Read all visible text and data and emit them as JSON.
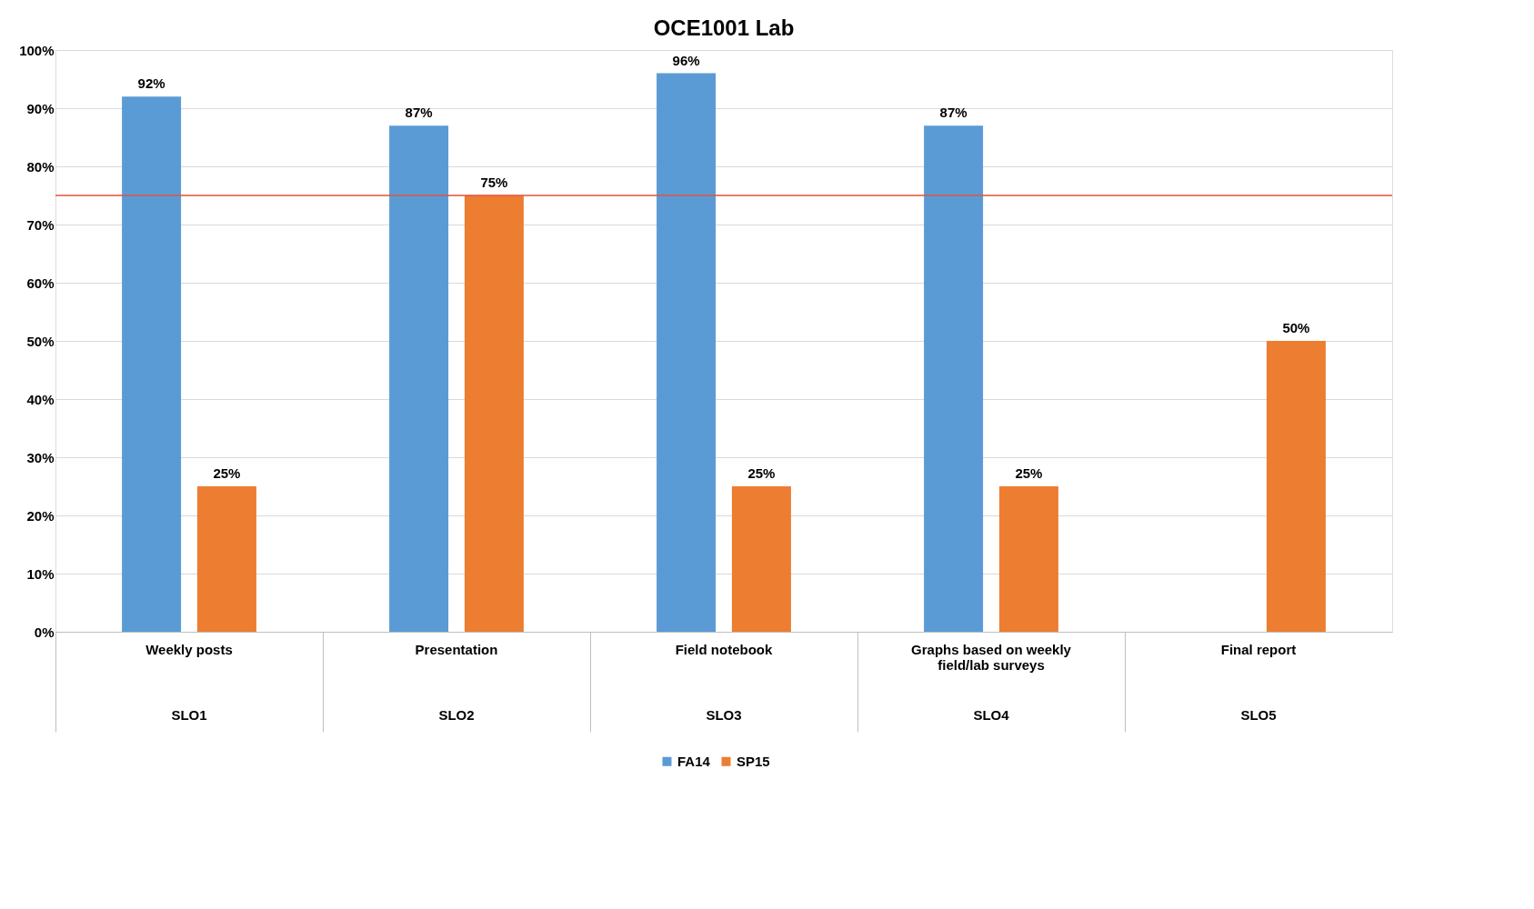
{
  "chart_data": {
    "type": "bar",
    "title": "OCE1001 Lab",
    "categories": [
      "Weekly posts",
      "Presentation",
      "Field notebook",
      "Graphs based on weekly field/lab surveys",
      "Final report"
    ],
    "series": [
      {
        "name": "FA14",
        "color": "#5b9bd5",
        "values": [
          92,
          87,
          96,
          87,
          null
        ],
        "value_labels": [
          "92%",
          "87%",
          "96%",
          "87%",
          null
        ]
      },
      {
        "name": "SP15",
        "color": "#ed7d31",
        "values": [
          25,
          75,
          25,
          25,
          50
        ],
        "value_labels": [
          "25%",
          "75%",
          "25%",
          "25%",
          "50%"
        ]
      }
    ],
    "ylim": [
      0,
      100
    ],
    "yticks": [
      {
        "value": 0,
        "label": "0%"
      },
      {
        "value": 10,
        "label": "10%"
      },
      {
        "value": 20,
        "label": "20%"
      },
      {
        "value": 30,
        "label": "30%"
      },
      {
        "value": 40,
        "label": "40%"
      },
      {
        "value": 50,
        "label": "50%"
      },
      {
        "value": 60,
        "label": "60%"
      },
      {
        "value": 70,
        "label": "70%"
      },
      {
        "value": 80,
        "label": "80%"
      },
      {
        "value": 90,
        "label": "90%"
      },
      {
        "value": 100,
        "label": "100%"
      }
    ],
    "ref_lines": [
      {
        "axis": "y",
        "value": 75,
        "color": "#e0533a"
      }
    ],
    "annotations": [
      "SLO1",
      "SLO2",
      "SLO3",
      "SLO4",
      "SLO5"
    ],
    "grid": "y",
    "legend": "bottom"
  }
}
